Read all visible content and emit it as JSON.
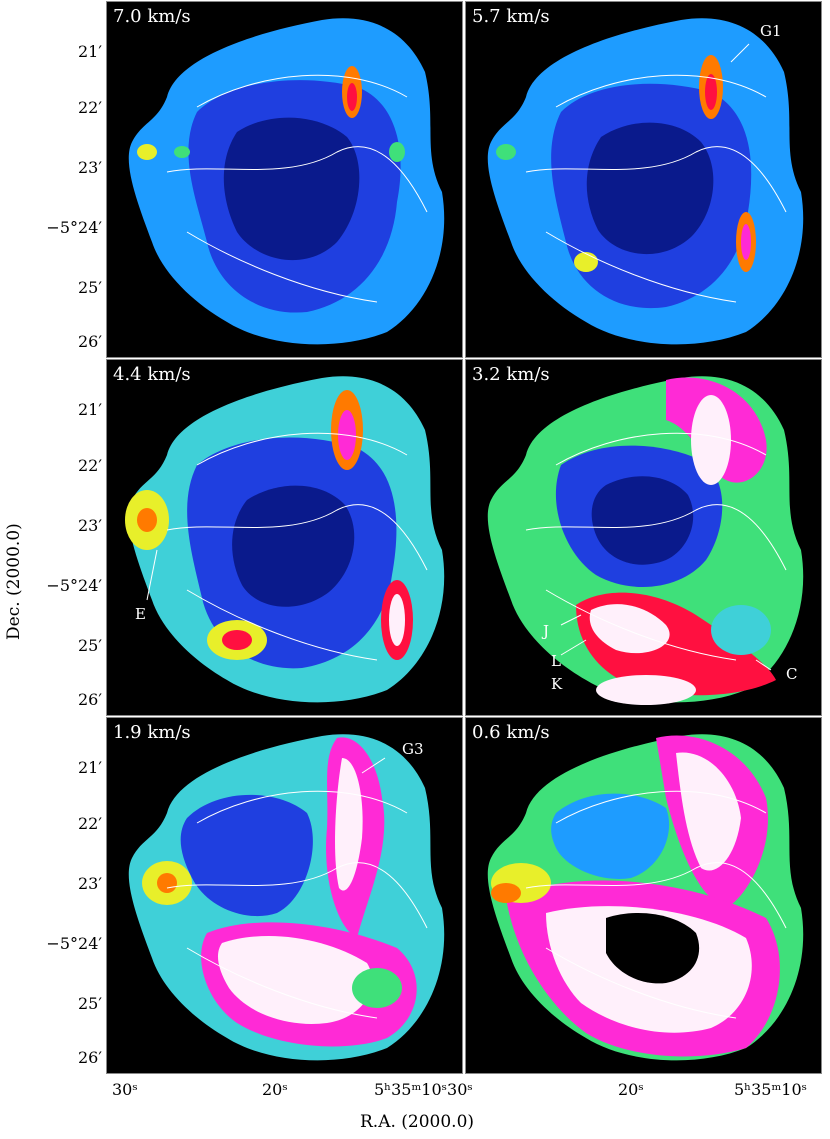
{
  "panels": [
    {
      "velocity": "7.0 km/s",
      "labels": []
    },
    {
      "velocity": "5.7 km/s",
      "labels": [
        "G1"
      ]
    },
    {
      "velocity": "4.4 km/s",
      "labels": [
        "E"
      ]
    },
    {
      "velocity": "3.2 km/s",
      "labels": [
        "J",
        "L",
        "K",
        "C"
      ]
    },
    {
      "velocity": "1.9 km/s",
      "labels": [
        "G3"
      ]
    },
    {
      "velocity": "0.6 km/s",
      "labels": []
    }
  ],
  "y_ticks": [
    "21′",
    "22′",
    "23′",
    "−5°24′",
    "25′",
    "26′"
  ],
  "x_ticks": [
    "30ˢ",
    "20ˢ",
    "5ʰ35ᵐ10ˢ30ˢ",
    "20ˢ",
    "5ʰ35ᵐ10ˢ"
  ],
  "x_axis_label": "R.A. (2000.0)",
  "y_axis_label": "Dec. (2000.0)",
  "colormap": [
    "#000000",
    "#0a1a8c",
    "#1f3fe0",
    "#1e9cff",
    "#3fd0d8",
    "#3fe07a",
    "#e8ef2a",
    "#ff7a00",
    "#ff1040",
    "#ff2ad6",
    "#fff0fb"
  ]
}
